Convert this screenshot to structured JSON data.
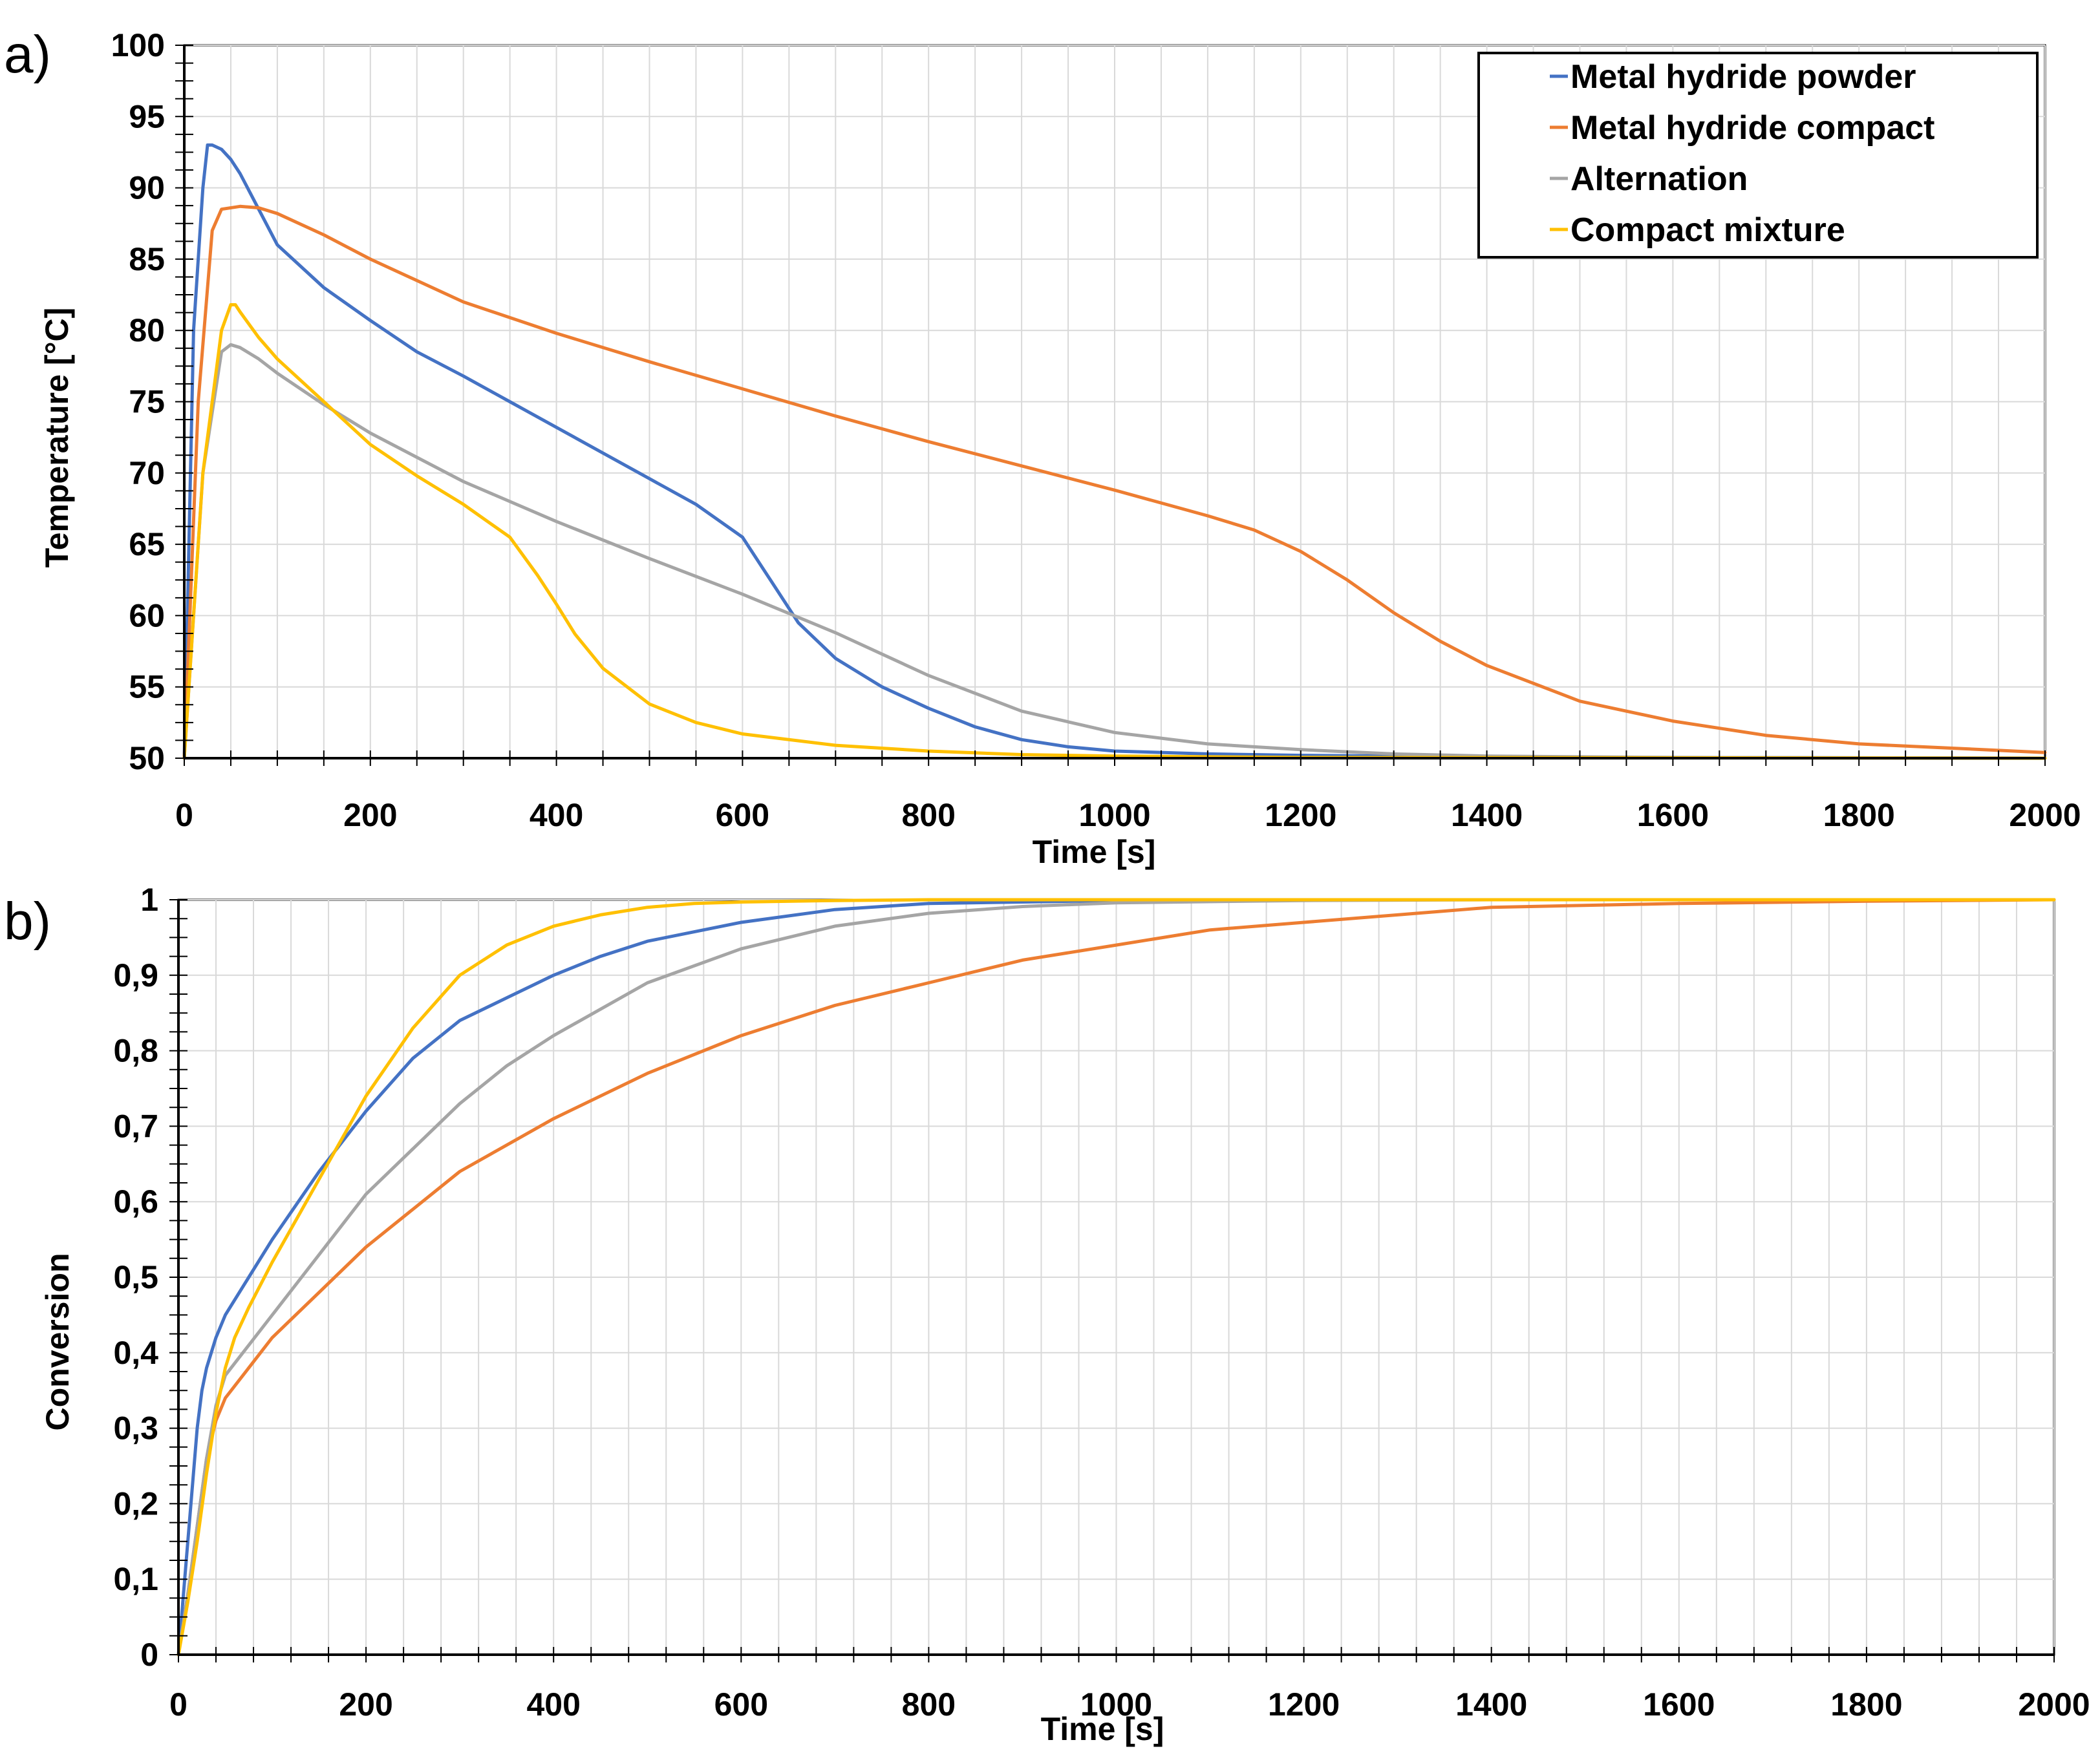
{
  "chart_data": [
    {
      "type": "line",
      "panel": "a)",
      "title": "",
      "xlabel": "Time [s]",
      "ylabel": "Temperature [°C]",
      "xlim": [
        0,
        2000
      ],
      "ylim": [
        50,
        100
      ],
      "xticks": [
        0,
        200,
        400,
        600,
        800,
        1000,
        1200,
        1400,
        1600,
        1800,
        2000
      ],
      "yticks": [
        50,
        55,
        60,
        65,
        70,
        75,
        80,
        85,
        90,
        95,
        100
      ],
      "x_tick_labels": [
        "0",
        "200",
        "400",
        "600",
        "800",
        "1000",
        "1200",
        "1400",
        "1600",
        "1800",
        "2000"
      ],
      "y_tick_labels": [
        "50",
        "55",
        "60",
        "65",
        "70",
        "75",
        "80",
        "85",
        "90",
        "95",
        "100"
      ],
      "grid": true,
      "legend": {
        "placement": "top-right",
        "entries": [
          "Metal hydride powder",
          "Metal hydride compact",
          "Alternation",
          "Compact mixture"
        ]
      },
      "series": [
        {
          "name": "Metal hydride powder",
          "color": "#4472c4",
          "x": [
            0,
            10,
            20,
            25,
            30,
            40,
            50,
            60,
            80,
            100,
            150,
            200,
            250,
            300,
            350,
            400,
            450,
            500,
            550,
            600,
            630,
            660,
            700,
            750,
            800,
            850,
            900,
            950,
            1000,
            1100,
            1200,
            1400,
            1600,
            2000
          ],
          "y": [
            50,
            80,
            90,
            93,
            93,
            92.7,
            92,
            91,
            88.5,
            86,
            83,
            80.7,
            78.5,
            76.8,
            75,
            73.2,
            71.4,
            69.6,
            67.8,
            65.5,
            62.5,
            59.5,
            57,
            55,
            53.5,
            52.2,
            51.3,
            50.8,
            50.5,
            50.3,
            50.2,
            50.1,
            50.05,
            50
          ]
        },
        {
          "name": "Metal hydride compact",
          "color": "#ed7d31",
          "x": [
            0,
            15,
            30,
            40,
            60,
            80,
            100,
            150,
            200,
            300,
            400,
            500,
            600,
            700,
            800,
            900,
            1000,
            1100,
            1150,
            1200,
            1250,
            1300,
            1350,
            1400,
            1500,
            1600,
            1700,
            1800,
            2000
          ],
          "y": [
            50,
            75,
            87,
            88.5,
            88.7,
            88.6,
            88.2,
            86.7,
            85,
            82,
            79.8,
            77.8,
            75.9,
            74,
            72.2,
            70.5,
            68.8,
            67,
            66,
            64.5,
            62.5,
            60.2,
            58.2,
            56.5,
            54,
            52.6,
            51.6,
            51,
            50.4
          ]
        },
        {
          "name": "Alternation",
          "color": "#a5a5a5",
          "x": [
            0,
            20,
            40,
            50,
            60,
            80,
            100,
            150,
            200,
            300,
            400,
            500,
            600,
            700,
            800,
            900,
            1000,
            1100,
            1200,
            1300,
            1400,
            1600,
            2000
          ],
          "y": [
            50,
            70,
            78.5,
            79,
            78.8,
            78,
            77,
            74.8,
            72.8,
            69.4,
            66.6,
            64,
            61.5,
            58.8,
            55.8,
            53.3,
            51.8,
            51,
            50.6,
            50.3,
            50.15,
            50.05,
            50
          ]
        },
        {
          "name": "Compact mixture",
          "color": "#ffc000",
          "x": [
            0,
            20,
            40,
            50,
            55,
            60,
            80,
            100,
            150,
            200,
            250,
            300,
            350,
            380,
            400,
            420,
            450,
            500,
            550,
            600,
            700,
            800,
            900,
            1000,
            1200,
            2000
          ],
          "y": [
            50,
            70,
            80,
            81.8,
            81.8,
            81.3,
            79.5,
            78,
            75,
            72,
            69.8,
            67.8,
            65.5,
            62.8,
            60.8,
            58.7,
            56.3,
            53.8,
            52.5,
            51.7,
            50.9,
            50.5,
            50.25,
            50.15,
            50.05,
            50
          ]
        }
      ]
    },
    {
      "type": "line",
      "panel": "b)",
      "title": "",
      "xlabel": "Time [s]",
      "ylabel": "Conversion",
      "xlim": [
        0,
        2000
      ],
      "ylim": [
        0,
        1
      ],
      "xticks": [
        0,
        200,
        400,
        600,
        800,
        1000,
        1200,
        1400,
        1600,
        1800,
        2000
      ],
      "yticks": [
        0,
        0.1,
        0.2,
        0.3,
        0.4,
        0.5,
        0.6,
        0.7,
        0.8,
        0.9,
        1
      ],
      "x_tick_labels": [
        "0",
        "200",
        "400",
        "600",
        "800",
        "1000",
        "1200",
        "1400",
        "1600",
        "1800",
        "2000"
      ],
      "y_tick_labels": [
        "0",
        "0,1",
        "0,2",
        "0,3",
        "0,4",
        "0,5",
        "0,6",
        "0,7",
        "0,8",
        "0,9",
        "1"
      ],
      "grid": true,
      "series": [
        {
          "name": "Metal hydride powder",
          "color": "#4472c4",
          "x": [
            0,
            10,
            20,
            25,
            30,
            40,
            50,
            75,
            100,
            150,
            200,
            250,
            300,
            350,
            400,
            450,
            500,
            600,
            700,
            800,
            1000,
            1200,
            2000
          ],
          "y": [
            0,
            0.15,
            0.3,
            0.35,
            0.38,
            0.42,
            0.45,
            0.5,
            0.55,
            0.64,
            0.72,
            0.79,
            0.84,
            0.87,
            0.9,
            0.925,
            0.945,
            0.97,
            0.987,
            0.995,
            0.999,
            1,
            1
          ]
        },
        {
          "name": "Metal hydride compact",
          "color": "#ed7d31",
          "x": [
            0,
            10,
            20,
            30,
            40,
            50,
            75,
            100,
            150,
            200,
            250,
            300,
            400,
            500,
            600,
            700,
            800,
            900,
            1000,
            1100,
            1200,
            1300,
            1400,
            1600,
            1800,
            2000
          ],
          "y": [
            0,
            0.08,
            0.17,
            0.26,
            0.31,
            0.34,
            0.38,
            0.42,
            0.48,
            0.54,
            0.59,
            0.64,
            0.71,
            0.77,
            0.82,
            0.86,
            0.89,
            0.92,
            0.94,
            0.96,
            0.97,
            0.98,
            0.99,
            0.995,
            0.998,
            1
          ]
        },
        {
          "name": "Alternation",
          "color": "#a5a5a5",
          "x": [
            0,
            10,
            20,
            30,
            40,
            50,
            75,
            100,
            150,
            200,
            250,
            300,
            350,
            400,
            500,
            600,
            700,
            800,
            900,
            1000,
            1200,
            1400,
            2000
          ],
          "y": [
            0,
            0.08,
            0.17,
            0.26,
            0.33,
            0.37,
            0.41,
            0.45,
            0.53,
            0.61,
            0.67,
            0.73,
            0.78,
            0.82,
            0.89,
            0.935,
            0.965,
            0.982,
            0.991,
            0.996,
            0.999,
            1,
            1
          ]
        },
        {
          "name": "Compact mixture",
          "color": "#ffc000",
          "x": [
            0,
            10,
            20,
            30,
            40,
            50,
            60,
            75,
            100,
            150,
            200,
            250,
            300,
            350,
            400,
            450,
            500,
            550,
            600,
            700,
            800,
            1000,
            2000
          ],
          "y": [
            0,
            0.07,
            0.15,
            0.24,
            0.32,
            0.38,
            0.42,
            0.46,
            0.52,
            0.63,
            0.74,
            0.83,
            0.9,
            0.94,
            0.965,
            0.98,
            0.99,
            0.995,
            0.997,
            0.999,
            1,
            1,
            1
          ]
        }
      ]
    }
  ]
}
